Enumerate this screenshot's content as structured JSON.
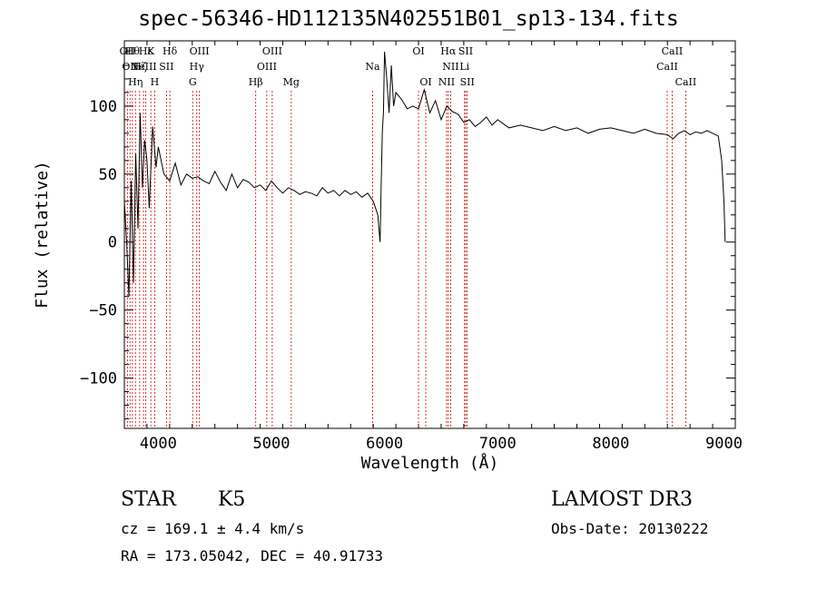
{
  "chart_data": {
    "type": "line",
    "title": "spec-56346-HD112135N402551B01_sp13-134.fits",
    "xlabel": "Wavelength (Å)",
    "ylabel": "Flux (relative)",
    "xlim": [
      3700,
      9100
    ],
    "ylim": [
      -137,
      148
    ],
    "xticks": [
      4000,
      5000,
      6000,
      7000,
      8000,
      9000
    ],
    "yticks": [
      -100,
      -50,
      0,
      50,
      100
    ],
    "grid": false,
    "line_color": "#000000",
    "marker_color": "#cc0000",
    "series": [
      {
        "x": [
          3700,
          3720,
          3740,
          3760,
          3780,
          3800,
          3820,
          3840,
          3860,
          3880,
          3900,
          3920,
          3950,
          3980,
          4000,
          4050,
          4100,
          4150,
          4200,
          4250,
          4300,
          4350,
          4400,
          4450,
          4500,
          4550,
          4600,
          4650,
          4700,
          4750,
          4800,
          4850,
          4900,
          4950,
          5000,
          5050,
          5100,
          5150,
          5200,
          5250,
          5300,
          5350,
          5400,
          5450,
          5500,
          5550,
          5600,
          5650,
          5700,
          5750,
          5800,
          5850,
          5900,
          5920,
          5940,
          5950,
          5960,
          5970,
          5980,
          5990,
          6000,
          6020,
          6040,
          6060,
          6080,
          6100,
          6150,
          6200,
          6250,
          6300,
          6350,
          6400,
          6450,
          6500,
          6550,
          6600,
          6650,
          6700,
          6750,
          6800,
          6850,
          6900,
          6950,
          7000,
          7100,
          7200,
          7300,
          7400,
          7500,
          7600,
          7700,
          7800,
          7900,
          8000,
          8100,
          8200,
          8300,
          8400,
          8500,
          8550,
          8600,
          8650,
          8700,
          8750,
          8800,
          8850,
          8900,
          8950,
          8980,
          9000,
          9010
        ],
        "y": [
          30,
          0,
          -40,
          45,
          -30,
          65,
          10,
          95,
          40,
          75,
          60,
          25,
          85,
          55,
          70,
          50,
          45,
          58,
          42,
          50,
          47,
          48,
          45,
          43,
          52,
          44,
          38,
          50,
          40,
          46,
          44,
          40,
          42,
          38,
          45,
          40,
          36,
          40,
          38,
          35,
          37,
          36,
          34,
          40,
          36,
          38,
          34,
          38,
          35,
          37,
          33,
          36,
          30,
          25,
          20,
          10,
          0,
          42,
          82,
          95,
          140,
          120,
          95,
          130,
          100,
          110,
          105,
          98,
          100,
          98,
          112,
          95,
          104,
          90,
          100,
          96,
          94,
          88,
          90,
          85,
          88,
          92,
          86,
          90,
          84,
          86,
          84,
          82,
          85,
          82,
          84,
          80,
          83,
          84,
          82,
          80,
          83,
          80,
          79,
          76,
          80,
          82,
          79,
          81,
          80,
          82,
          80,
          78,
          60,
          30,
          0
        ]
      }
    ],
    "line_markers": [
      {
        "x": 3727,
        "labels": [
          "OII"
        ],
        "row": 1
      },
      {
        "x": 3750,
        "labels": [
          "OII"
        ],
        "row": 2
      },
      {
        "x": 3771,
        "labels": [
          "Hθ"
        ],
        "row": 1
      },
      {
        "x": 3798,
        "labels": [
          "Hη"
        ],
        "row": 3
      },
      {
        "x": 3835,
        "labels": [
          "Hζ"
        ],
        "row": 2
      },
      {
        "x": 3869,
        "labels": [
          "NeIII"
        ],
        "row": 2
      },
      {
        "x": 3889,
        "labels": [
          "Hε"
        ],
        "row": 1
      },
      {
        "x": 3934,
        "labels": [
          "K"
        ],
        "row": 1
      },
      {
        "x": 3968,
        "labels": [
          "H"
        ],
        "row": 3
      },
      {
        "x": 4072,
        "labels": [
          "SII"
        ],
        "row": 2
      },
      {
        "x": 4102,
        "labels": [
          "Hδ"
        ],
        "row": 1
      },
      {
        "x": 4304,
        "labels": [
          "G"
        ],
        "row": 3
      },
      {
        "x": 4340,
        "labels": [
          "Hγ"
        ],
        "row": 2
      },
      {
        "x": 4363,
        "labels": [
          "OIII"
        ],
        "row": 1
      },
      {
        "x": 4861,
        "labels": [
          "Hβ"
        ],
        "row": 3
      },
      {
        "x": 4959,
        "labels": [
          "OIII"
        ],
        "row": 2
      },
      {
        "x": 5007,
        "labels": [
          "OIII"
        ],
        "row": 1
      },
      {
        "x": 5175,
        "labels": [
          "Mg"
        ],
        "row": 3
      },
      {
        "x": 5894,
        "labels": [
          "Na"
        ],
        "row": 2
      },
      {
        "x": 6300,
        "labels": [
          "OI"
        ],
        "row": 1
      },
      {
        "x": 6364,
        "labels": [
          "OI"
        ],
        "row": 3
      },
      {
        "x": 6548,
        "labels": [
          "NII"
        ],
        "row": 3
      },
      {
        "x": 6563,
        "labels": [
          "Hα"
        ],
        "row": 1
      },
      {
        "x": 6584,
        "labels": [
          "NII"
        ],
        "row": 2
      },
      {
        "x": 6707,
        "labels": [
          "Li"
        ],
        "row": 2
      },
      {
        "x": 6717,
        "labels": [
          "SII"
        ],
        "row": 1
      },
      {
        "x": 6731,
        "labels": [
          "SII"
        ],
        "row": 3
      },
      {
        "x": 8498,
        "labels": [
          "CaII"
        ],
        "row": 2
      },
      {
        "x": 8542,
        "labels": [
          "CaII"
        ],
        "row": 1
      },
      {
        "x": 8662,
        "labels": [
          "CaII"
        ],
        "row": 3
      }
    ]
  },
  "info": {
    "class_label": "STAR",
    "subclass_label": "K5",
    "survey": "LAMOST DR3",
    "cz": "cz = 169.1 ± 4.4 km/s",
    "obs_date": "Obs-Date: 20130222",
    "coords": "RA = 173.05042, DEC =  40.91733"
  }
}
